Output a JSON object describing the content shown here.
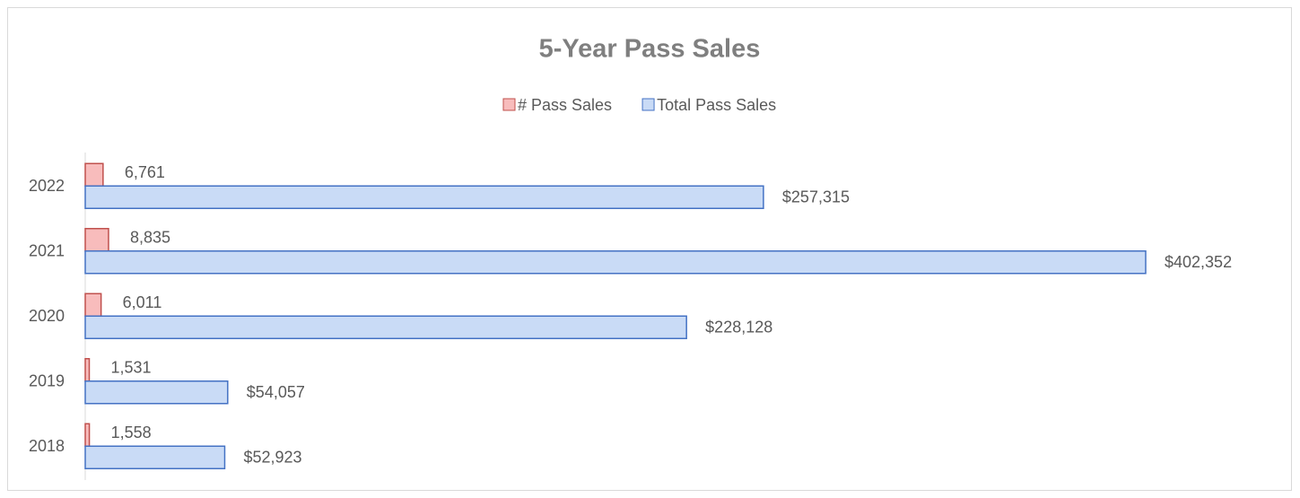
{
  "chart_data": {
    "type": "bar",
    "orientation": "horizontal",
    "title": "5-Year Pass Sales",
    "categories": [
      "2022",
      "2021",
      "2020",
      "2019",
      "2018"
    ],
    "series": [
      {
        "name": "# Pass Sales",
        "color": "#f8bcbc",
        "border": "#c0504d",
        "values": [
          6761,
          8835,
          6011,
          1531,
          1558
        ],
        "value_labels": [
          "6,761",
          "8,835",
          "6,011",
          "1,531",
          "1,558"
        ]
      },
      {
        "name": "Total Pass Sales",
        "color": "#c9dbf6",
        "border": "#4472c4",
        "values": [
          257315,
          402352,
          228128,
          54057,
          52923
        ],
        "value_labels": [
          "$257,315",
          "$402,352",
          "$228,128",
          "$54,057",
          "$52,923"
        ]
      }
    ],
    "legend": "top"
  }
}
